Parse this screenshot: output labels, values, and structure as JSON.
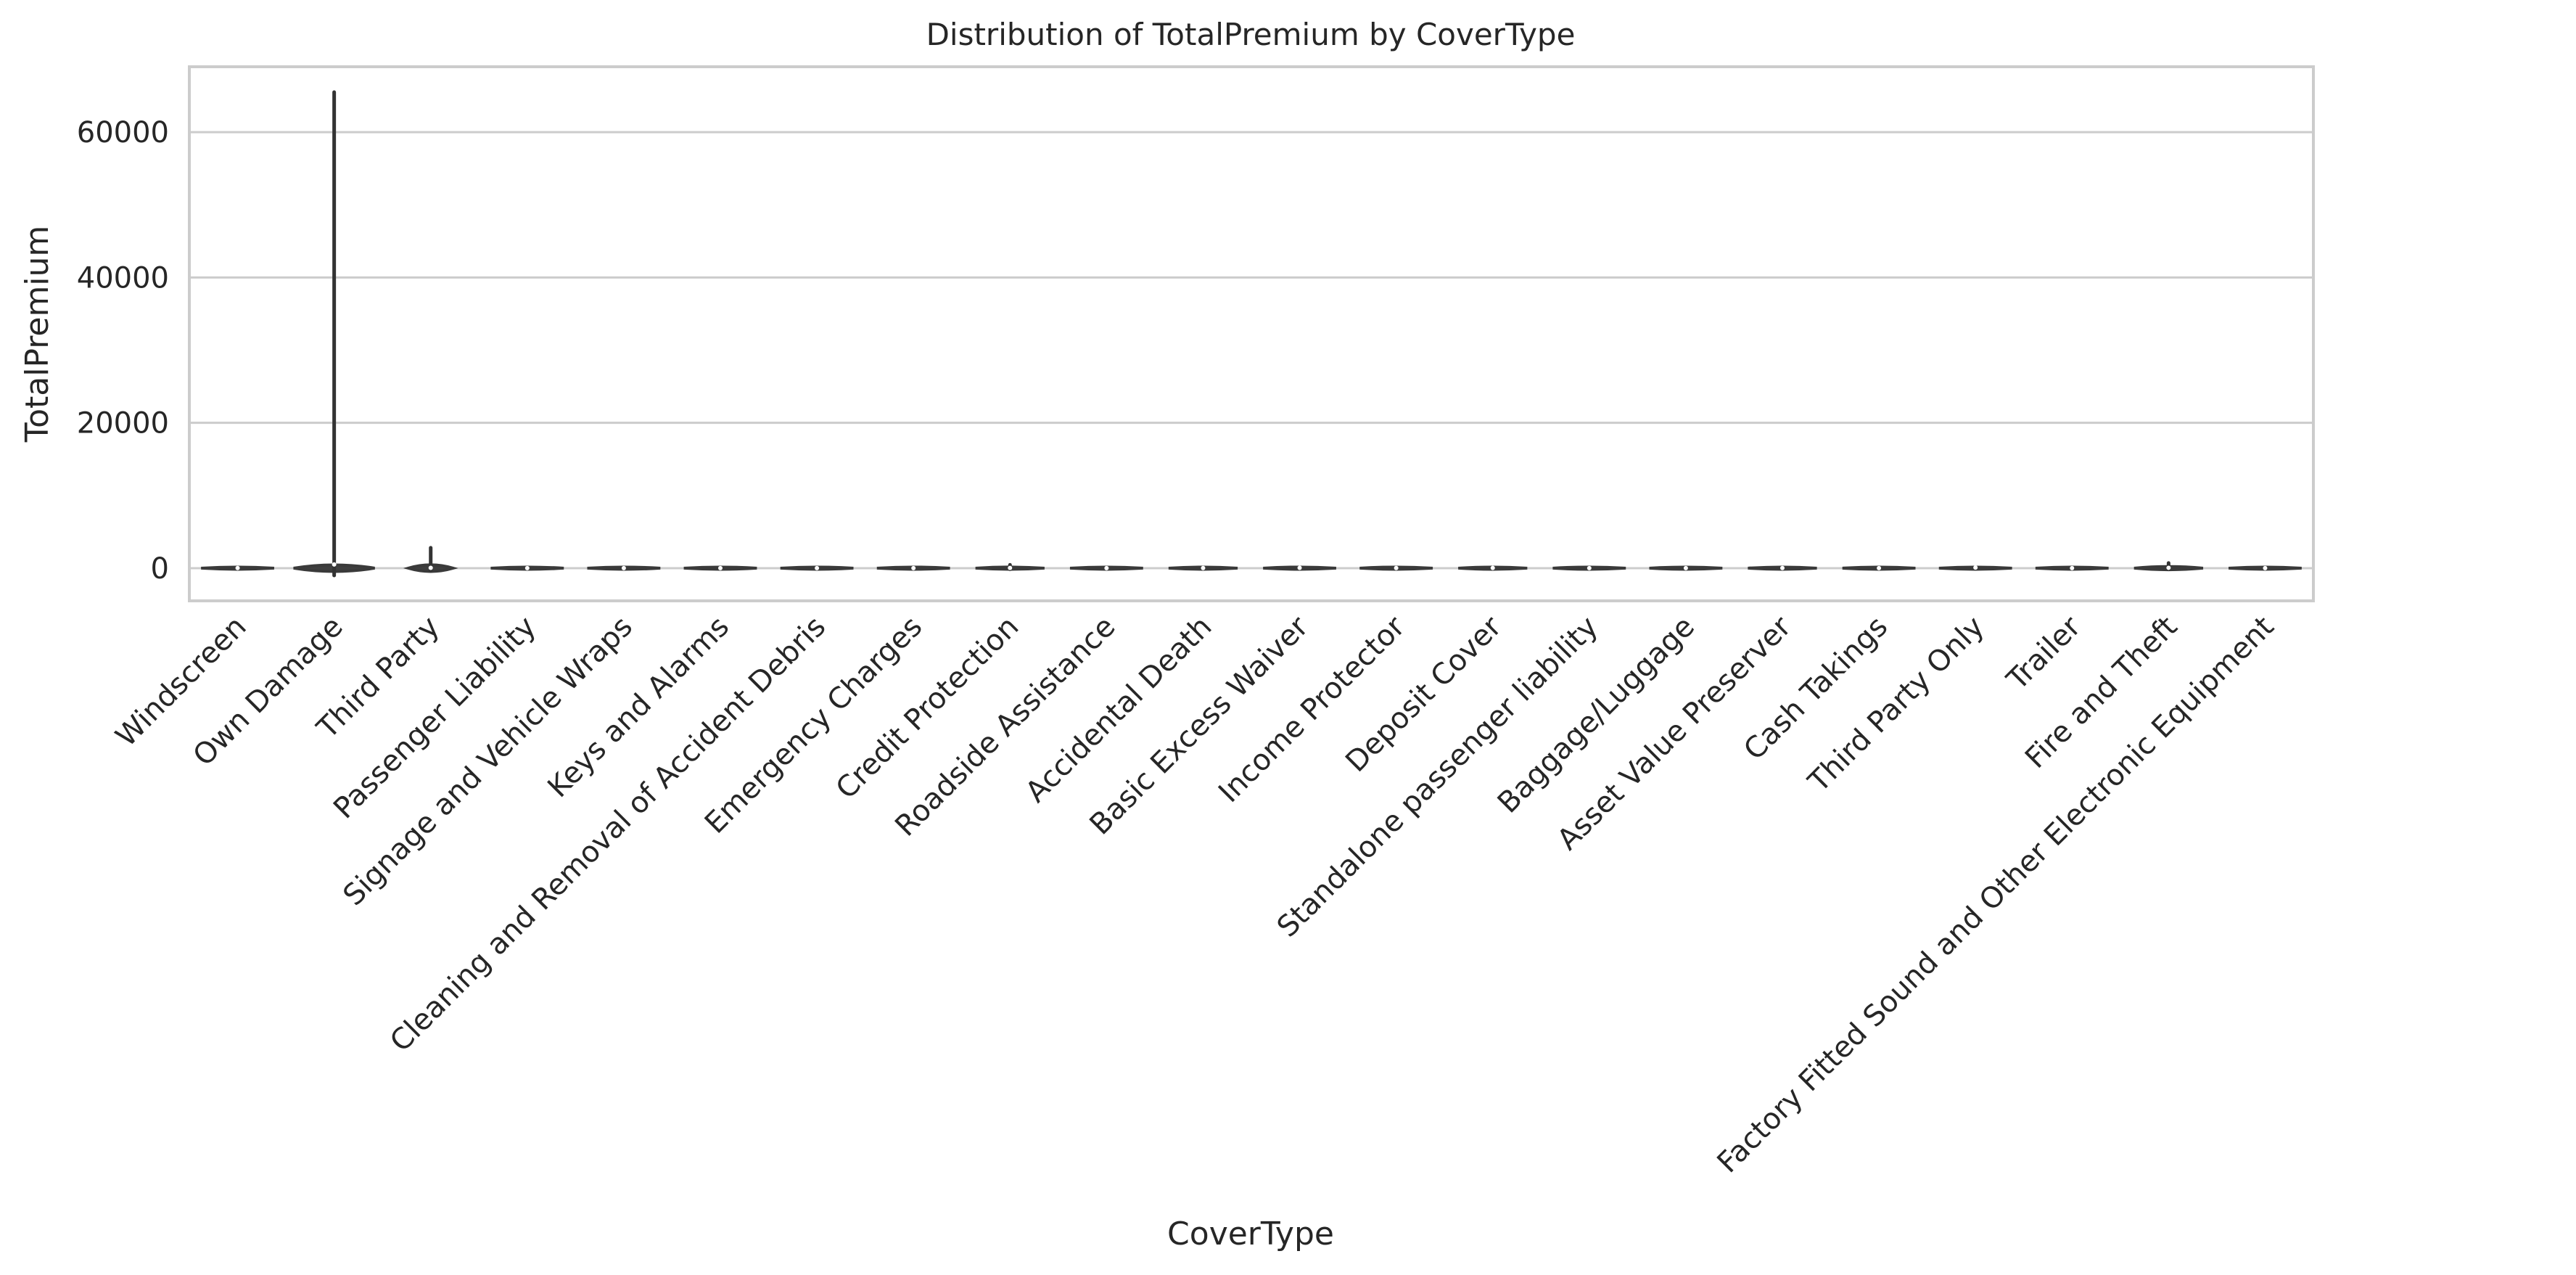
{
  "chart_data": {
    "type": "violin",
    "title": "Distribution of TotalPremium by CoverType",
    "xlabel": "CoverType",
    "ylabel": "TotalPremium",
    "ylim": [
      -4500,
      69000
    ],
    "yticks": [
      0,
      20000,
      40000,
      60000
    ],
    "grid": true,
    "categories": [
      "Windscreen",
      "Own Damage",
      "Third Party",
      "Passenger Liability",
      "Signage and Vehicle Wraps",
      "Keys and Alarms",
      "Cleaning and Removal of Accident Debris",
      "Emergency Charges",
      "Credit Protection",
      "Roadside Assistance",
      "Accidental Death",
      "Basic Excess Waiver",
      "Income Protector",
      "Deposit Cover",
      "Standalone passenger liability",
      "Baggage/Luggage",
      "Asset Value Preserver",
      "Cash Takings",
      "Third Party Only",
      "Trailer",
      "Fire and Theft",
      "Factory Fitted Sound and Other Electronic Equipment"
    ],
    "distributions": [
      {
        "min": -150,
        "max": 80,
        "median": 20,
        "width": 0.9
      },
      {
        "min": -1000,
        "max": 65500,
        "median": 500,
        "width": 1.0
      },
      {
        "min": -300,
        "max": 2800,
        "median": 40,
        "width": 0.55
      },
      {
        "min": -100,
        "max": 300,
        "median": 10,
        "width": 0.9
      },
      {
        "min": -50,
        "max": 60,
        "median": 5,
        "width": 0.9
      },
      {
        "min": -50,
        "max": 60,
        "median": 5,
        "width": 0.9
      },
      {
        "min": -50,
        "max": 60,
        "median": 5,
        "width": 0.9
      },
      {
        "min": -50,
        "max": 60,
        "median": 5,
        "width": 0.9
      },
      {
        "min": -150,
        "max": 450,
        "median": 30,
        "width": 0.85
      },
      {
        "min": -50,
        "max": 80,
        "median": 5,
        "width": 0.9
      },
      {
        "min": -120,
        "max": 400,
        "median": 20,
        "width": 0.85
      },
      {
        "min": -100,
        "max": 200,
        "median": 40,
        "width": 0.9
      },
      {
        "min": -100,
        "max": 150,
        "median": 20,
        "width": 0.9
      },
      {
        "min": -100,
        "max": 250,
        "median": 30,
        "width": 0.85
      },
      {
        "min": -60,
        "max": 80,
        "median": 10,
        "width": 0.9
      },
      {
        "min": -60,
        "max": 80,
        "median": 5,
        "width": 0.9
      },
      {
        "min": -100,
        "max": 200,
        "median": 20,
        "width": 0.85
      },
      {
        "min": -60,
        "max": 80,
        "median": 5,
        "width": 0.9
      },
      {
        "min": -50,
        "max": 250,
        "median": 80,
        "width": 0.9
      },
      {
        "min": -60,
        "max": 80,
        "median": 5,
        "width": 0.9
      },
      {
        "min": -150,
        "max": 700,
        "median": 50,
        "width": 0.85
      },
      {
        "min": -50,
        "max": 50,
        "median": 5,
        "width": 0.9
      }
    ]
  }
}
